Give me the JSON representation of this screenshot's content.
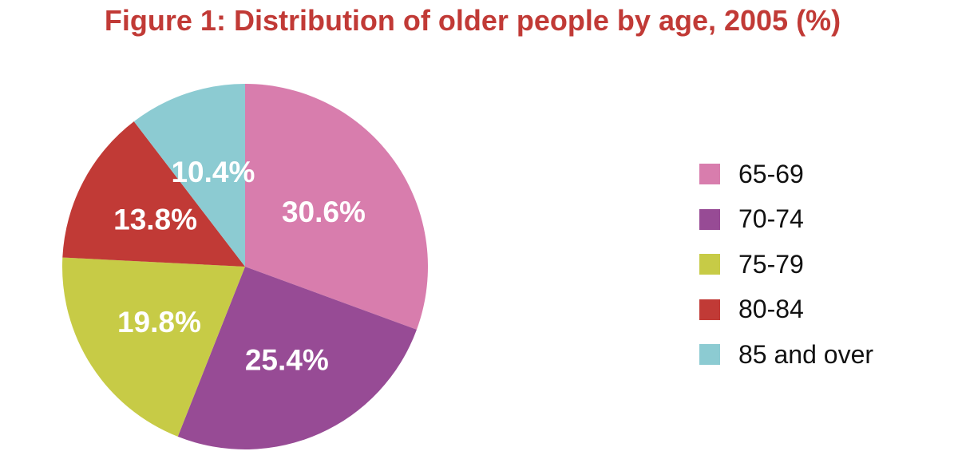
{
  "chart_data": {
    "type": "pie",
    "title": "Figure 1: Distribution of older people by age, 2005 (%)",
    "categories": [
      "65-69",
      "70-74",
      "75-79",
      "80-84",
      "85 and over"
    ],
    "values": [
      30.6,
      25.4,
      19.8,
      13.8,
      10.4
    ],
    "data_labels": [
      "30.6%",
      "25.4%",
      "19.8%",
      "13.8%",
      "10.4%"
    ],
    "colors": [
      "#d87dad",
      "#974b95",
      "#c7cb46",
      "#c13a36",
      "#8ccbd2"
    ],
    "title_color": "#c13a36",
    "legend": "right"
  }
}
